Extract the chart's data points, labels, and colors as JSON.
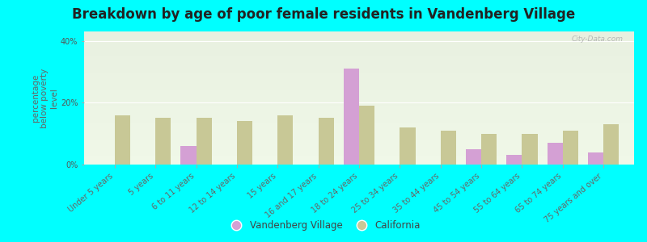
{
  "title": "Breakdown by age of poor female residents in Vandenberg Village",
  "ylabel": "percentage\nbelow poverty\nlevel",
  "categories": [
    "Under 5 years",
    "5 years",
    "6 to 11 years",
    "12 to 14 years",
    "15 years",
    "16 and 17 years",
    "18 to 24 years",
    "25 to 34 years",
    "35 to 44 years",
    "45 to 54 years",
    "55 to 64 years",
    "65 to 74 years",
    "75 years and over"
  ],
  "vandenberg": [
    0,
    0,
    6,
    0,
    0,
    0,
    31,
    0,
    0,
    5,
    3,
    7,
    4
  ],
  "california": [
    16,
    15,
    15,
    14,
    16,
    15,
    19,
    12,
    11,
    10,
    10,
    11,
    13
  ],
  "bar_color_vandenberg": "#d4a0d4",
  "bar_color_california": "#c8c896",
  "background_color_fig": "#00ffff",
  "background_top": "#e8f0e0",
  "background_bottom": "#f0f8e8",
  "ylim": [
    0,
    43
  ],
  "yticks": [
    0,
    20,
    40
  ],
  "ytick_labels": [
    "0%",
    "20%",
    "40%"
  ],
  "title_fontsize": 12,
  "tick_fontsize": 7,
  "ylabel_fontsize": 7.5,
  "legend_labels": [
    "Vandenberg Village",
    "California"
  ],
  "watermark": "City-Data.com"
}
